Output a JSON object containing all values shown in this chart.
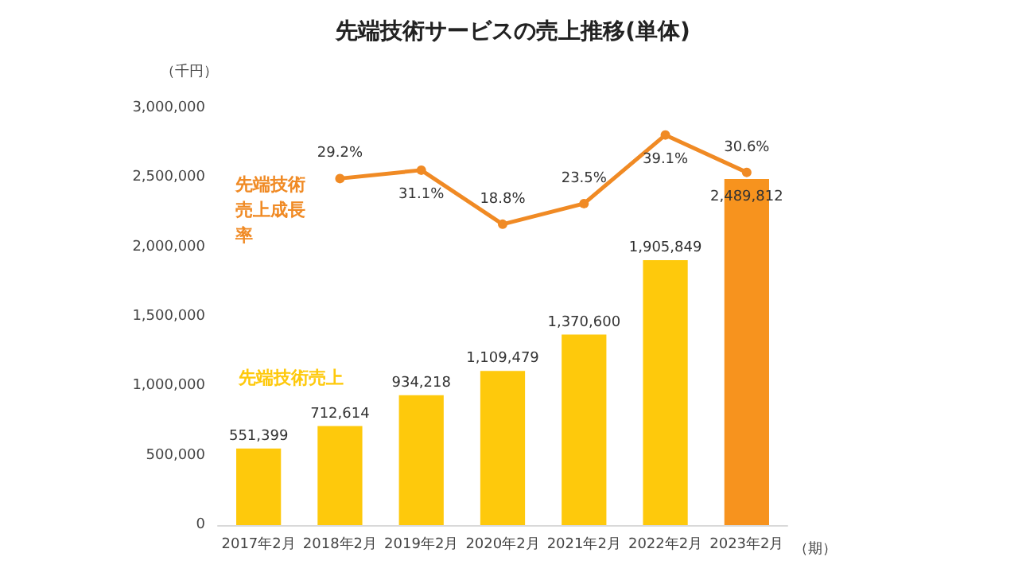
{
  "chart_data": {
    "type": "bar",
    "title": "先端技術サービスの売上推移(単体)",
    "ylabel": "（千円）",
    "xlabel": "（期）",
    "categories": [
      "2017年2月",
      "2018年2月",
      "2019年2月",
      "2020年2月",
      "2021年2月",
      "2022年2月",
      "2023年2月"
    ],
    "series": [
      {
        "name": "先端技術売上",
        "color": "#fec90c",
        "colors": [
          "#fec90c",
          "#fec90c",
          "#fec90c",
          "#fec90c",
          "#fec90c",
          "#fec90c",
          "#f7931e"
        ],
        "values": [
          551399,
          712614,
          934218,
          1109479,
          1370600,
          1905849,
          2489812
        ],
        "value_labels": [
          "551,399",
          "712,614",
          "934,218",
          "1,109,479",
          "1,370,600",
          "1,905,849",
          "2,489,812"
        ]
      },
      {
        "name": "先端技術売上成長率",
        "type": "line",
        "axis": "y2",
        "color": "#f08a24",
        "values": [
          null,
          29.2,
          31.1,
          18.8,
          23.5,
          39.1,
          30.6
        ],
        "value_labels": [
          null,
          "29.2%",
          "31.1%",
          "18.8%",
          "23.5%",
          "39.1%",
          "30.6%"
        ]
      }
    ],
    "ylim": [
      0,
      3000000
    ],
    "yticks": [
      0,
      {
        "value": 500000,
        "label": "500,000"
      },
      {
        "value": 1000000,
        "label": "1,000,000"
      },
      {
        "value": 1500000,
        "label": "1,500,000"
      },
      {
        "value": 2000000,
        "label": "2,000,000"
      },
      {
        "value": 2500000,
        "label": "2,500,000"
      },
      {
        "value": 3000000,
        "label": "3,000,000"
      }
    ],
    "grid": false,
    "legend": false,
    "marker": "circle"
  }
}
